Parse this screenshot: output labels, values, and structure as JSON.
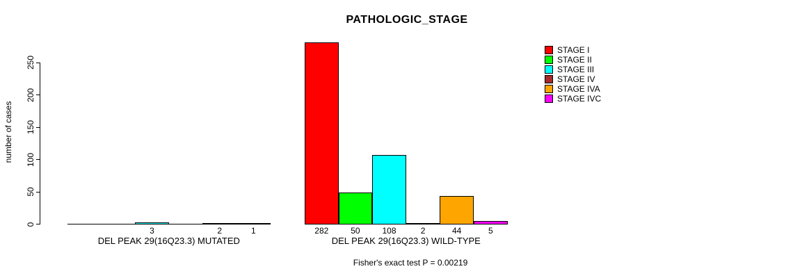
{
  "chart_data": {
    "type": "bar",
    "title": "PATHOLOGIC_STAGE",
    "ylabel": "number of cases",
    "ylim": [
      0,
      285
    ],
    "yticks": [
      0,
      50,
      100,
      150,
      200,
      250
    ],
    "grid": false,
    "legend_position": "right",
    "series_names": [
      "STAGE I",
      "STAGE II",
      "STAGE III",
      "STAGE IV",
      "STAGE IVA",
      "STAGE IVC"
    ],
    "series_colors": [
      "#FF0000",
      "#00FF00",
      "#00FFFF",
      "#A52A2A",
      "#FFA500",
      "#FF00FF"
    ],
    "groups": [
      {
        "label": "DEL PEAK 29(16Q23.3) MUTATED",
        "values": [
          0,
          0,
          3,
          0,
          2,
          1
        ],
        "bar_value_labels": [
          "",
          "",
          "3",
          "",
          "2",
          "1"
        ]
      },
      {
        "label": "DEL PEAK 29(16Q23.3) WILD-TYPE",
        "values": [
          282,
          50,
          108,
          2,
          44,
          5
        ],
        "bar_value_labels": [
          "282",
          "50",
          "108",
          "2",
          "44",
          "5"
        ]
      }
    ],
    "annotation": "Fisher's exact test P = 0.00219"
  }
}
